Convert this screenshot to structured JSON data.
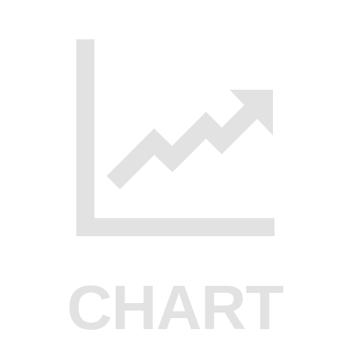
{
  "placeholder": {
    "icon": "line-chart-trend-up-icon",
    "label": "CHART",
    "color": "#e2e2e2",
    "background": "#ffffff"
  }
}
